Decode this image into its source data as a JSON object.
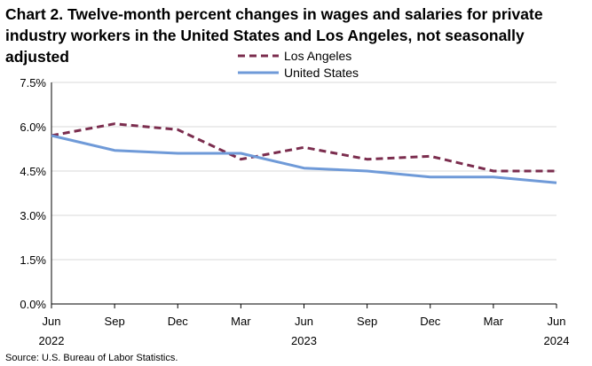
{
  "title_line1": "Chart 2. Twelve-month percent changes in wages and salaries for private",
  "title_line2": "industry workers in the United States and Los Angeles, not seasonally adjusted",
  "source": "Source: U.S. Bureau of Labor Statistics.",
  "chart_data": {
    "type": "line",
    "title": "Chart 2. Twelve-month percent changes in wages and salaries for private industry workers in the United States and Los Angeles, not seasonally adjusted",
    "xlabel": "",
    "ylabel": "",
    "categories": [
      "Jun 2022",
      "Sep",
      "Dec",
      "Mar",
      "Jun 2023",
      "Sep",
      "Dec",
      "Mar",
      "Jun 2024"
    ],
    "x_tick_labels": [
      {
        "month": "Jun",
        "year": "2022"
      },
      {
        "month": "Sep",
        "year": ""
      },
      {
        "month": "Dec",
        "year": ""
      },
      {
        "month": "Mar",
        "year": ""
      },
      {
        "month": "Jun",
        "year": "2023"
      },
      {
        "month": "Sep",
        "year": ""
      },
      {
        "month": "Dec",
        "year": ""
      },
      {
        "month": "Mar",
        "year": ""
      },
      {
        "month": "Jun",
        "year": "2024"
      }
    ],
    "y_ticks": [
      {
        "value": 0.0,
        "label": "0.0%"
      },
      {
        "value": 1.5,
        "label": "1.5%"
      },
      {
        "value": 3.0,
        "label": "3.0%"
      },
      {
        "value": 4.5,
        "label": "4.5%"
      },
      {
        "value": 6.0,
        "label": "6.0%"
      },
      {
        "value": 7.5,
        "label": "7.5%"
      }
    ],
    "ylim": [
      0,
      7.5
    ],
    "grid": true,
    "legend_position": "top-center",
    "series": [
      {
        "name": "Los Angeles",
        "color": "#7b2d4e",
        "dashed": true,
        "values": [
          5.7,
          6.1,
          5.9,
          4.9,
          5.3,
          4.9,
          5.0,
          4.5,
          4.5
        ]
      },
      {
        "name": "United States",
        "color": "#6f9ad8",
        "dashed": false,
        "values": [
          5.7,
          5.2,
          5.1,
          5.1,
          4.6,
          4.5,
          4.3,
          4.3,
          4.1
        ]
      }
    ]
  }
}
